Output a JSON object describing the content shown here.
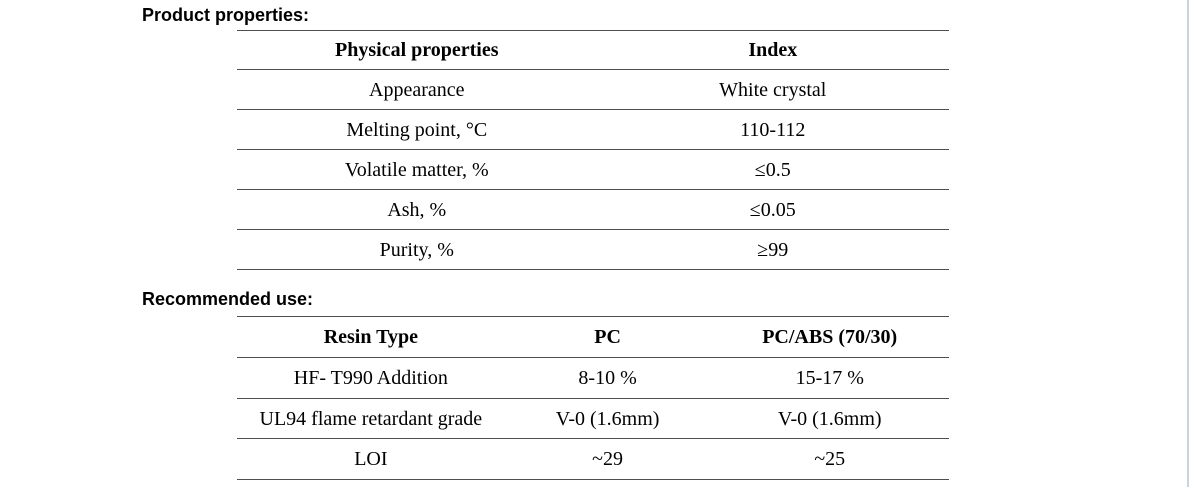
{
  "page": {
    "background": "#ffffff",
    "table_line_color": "#4f4f4f",
    "page_edge_color": "#ccd4d9",
    "text_color": "#000000"
  },
  "sections": [
    {
      "heading": "Product properties:",
      "table": {
        "headers": [
          "Physical properties",
          "Index"
        ],
        "rows": [
          [
            "Appearance",
            "White crystal"
          ],
          [
            "Melting point, °C",
            "110-112"
          ],
          [
            "Volatile matter, %",
            "≤0.5"
          ],
          [
            "Ash, %",
            "≤0.05"
          ],
          [
            "Purity, %",
            "≥99"
          ]
        ]
      }
    },
    {
      "heading": "Recommended use:",
      "table": {
        "headers": [
          "Resin Type",
          "PC",
          "PC/ABS (70/30)"
        ],
        "rows": [
          [
            "HF- T990 Addition",
            "8-10 %",
            "15-17 %"
          ],
          [
            "UL94 flame retardant grade",
            "V-0 (1.6mm)",
            "V-0 (1.6mm)"
          ],
          [
            "LOI",
            "~29",
            "~25"
          ]
        ]
      }
    }
  ]
}
